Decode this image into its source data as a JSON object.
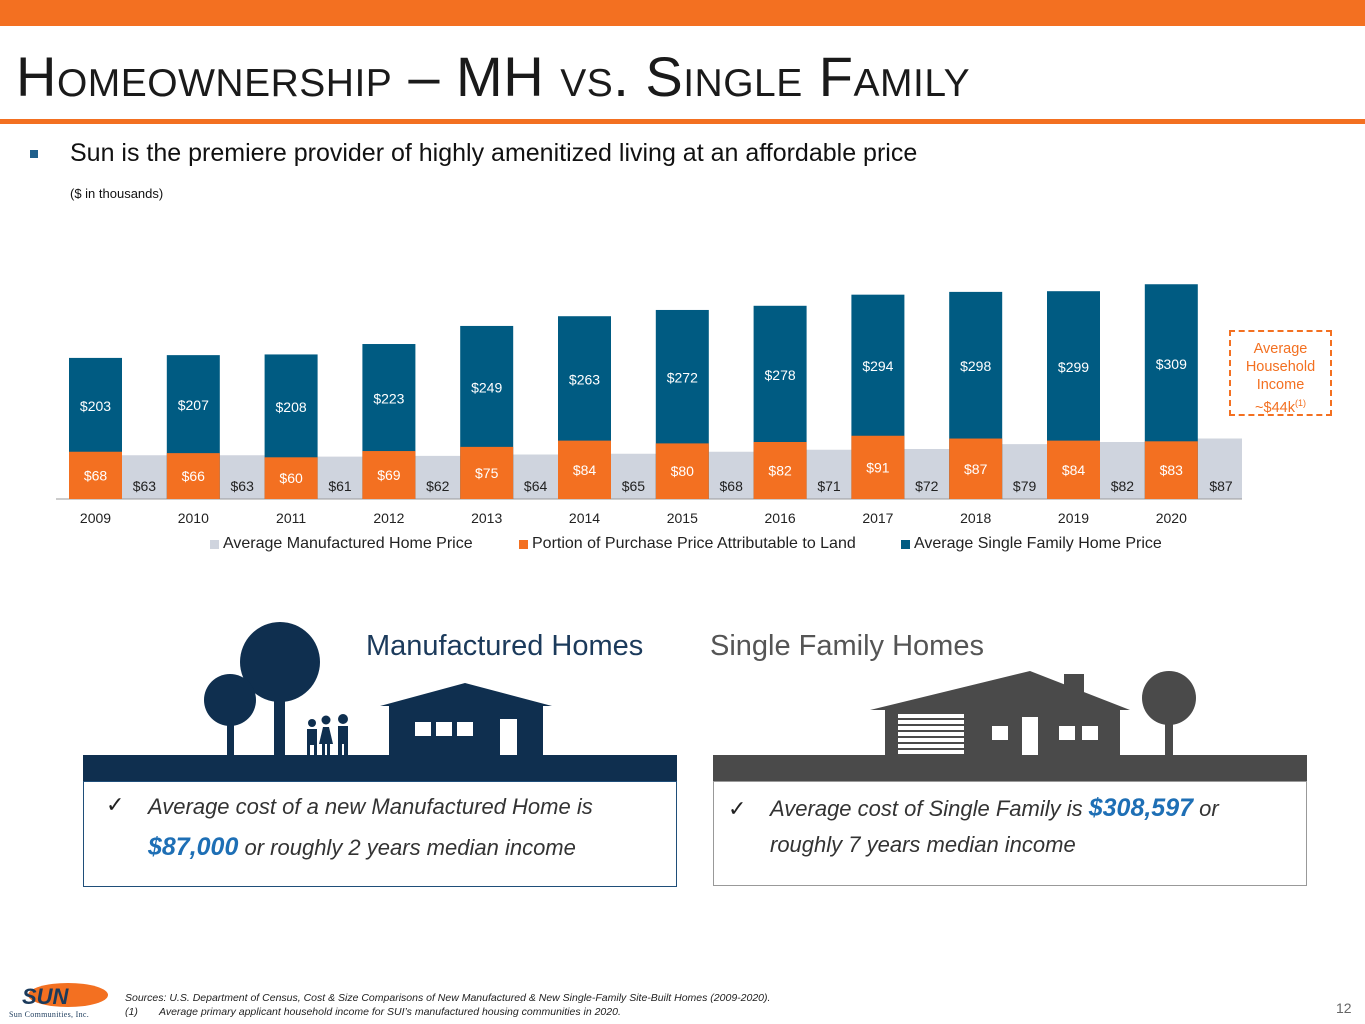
{
  "slide": {
    "title_part1": "Homeownership",
    "title_dash": " – MH ",
    "title_part2": "vs. Single Family",
    "subtitle": "Sun is the premiere provider of highly amenitized living at an affordable price",
    "unit_note": "($ in thousands)",
    "page_number": "12"
  },
  "income_box": {
    "line1": "Average",
    "line2": "Household",
    "line3": "Income",
    "line4": "~$44k",
    "footnote_mark": "(1)"
  },
  "colors": {
    "accent_orange": "#f37021",
    "sf_blue": "#005b82",
    "land_orange": "#f37021",
    "mh_gray": "#cfd4de",
    "navy": "#0f2f4f",
    "dark_gray": "#4a4a4a",
    "highlight_blue": "#1e6fb5"
  },
  "chart_data": {
    "type": "bar",
    "categories": [
      "2009",
      "2010",
      "2011",
      "2012",
      "2013",
      "2014",
      "2015",
      "2016",
      "2017",
      "2018",
      "2019",
      "2020"
    ],
    "series": [
      {
        "name": "Average Manufactured Home Price",
        "values": [
          63,
          63,
          61,
          62,
          64,
          65,
          68,
          71,
          72,
          79,
          82,
          87
        ],
        "labels": [
          "$63",
          "$63",
          "$61",
          "$62",
          "$64",
          "$65",
          "$68",
          "$71",
          "$72",
          "$79",
          "$82",
          "$87"
        ]
      },
      {
        "name": "Portion of Purchase Price Attributable to Land",
        "values": [
          68,
          66,
          60,
          69,
          75,
          84,
          80,
          82,
          91,
          87,
          84,
          83
        ],
        "labels": [
          "$68",
          "$66",
          "$60",
          "$69",
          "$75",
          "$84",
          "$80",
          "$82",
          "$91",
          "$87",
          "$84",
          "$83"
        ]
      },
      {
        "name": "Average Single Family Home Price",
        "values": [
          203,
          207,
          208,
          223,
          249,
          263,
          272,
          278,
          294,
          298,
          299,
          309
        ],
        "labels": [
          "$203",
          "$207",
          "$208",
          "$223",
          "$249",
          "$263",
          "$272",
          "$278",
          "$294",
          "$298",
          "$299",
          "$309"
        ]
      }
    ]
  },
  "mh": {
    "heading": "Manufactured Homes",
    "check": "✓",
    "text_a": "Average cost of a new Manufactured Home is",
    "value": "$87,000",
    "text_b": " or roughly 2 years median income"
  },
  "sf": {
    "heading": "Single Family Homes",
    "check": "✓",
    "text_a": "Average cost of Single Family is ",
    "value": "$308,597",
    "text_b": " or",
    "text_c": "roughly 7 years median income"
  },
  "sources": {
    "line1": "Sources: U.S. Department of Census, Cost & Size Comparisons of New Manufactured & New Single-Family Site-Built Homes (2009-2020).",
    "line2_mark": "(1)",
    "line2": "Average primary applicant household income for SUI’s manufactured housing communities in 2020."
  },
  "logo": {
    "mark": "SUN",
    "name": "Sun Communities, Inc."
  }
}
